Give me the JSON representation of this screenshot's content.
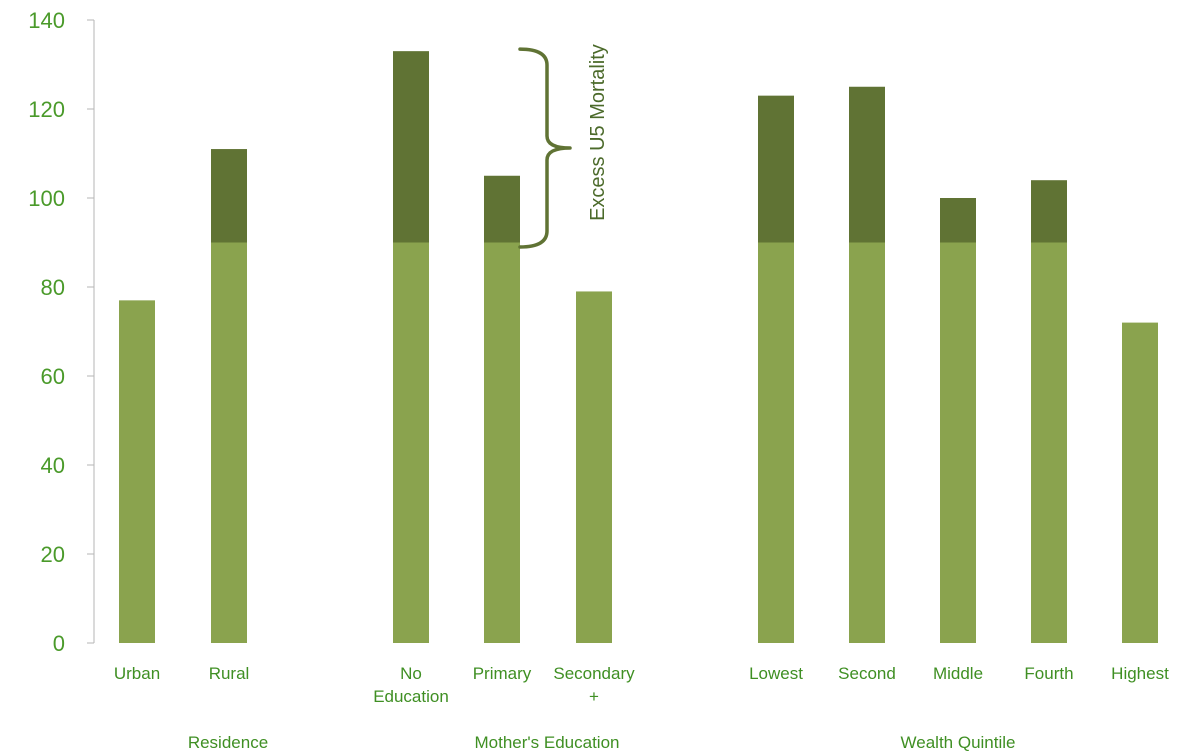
{
  "chart_data": {
    "type": "bar",
    "stacked": true,
    "categories": [
      "Urban",
      "Rural",
      "No Education",
      "Primary",
      "Secondary +",
      "Lowest",
      "Second",
      "Middle",
      "Fourth",
      "Highest"
    ],
    "category_lines": [
      [
        "Urban"
      ],
      [
        "Rural"
      ],
      [
        "No",
        "Education"
      ],
      [
        "Primary"
      ],
      [
        "Secondary",
        "+"
      ],
      [
        "Lowest"
      ],
      [
        "Second"
      ],
      [
        "Middle"
      ],
      [
        "Fourth"
      ],
      [
        "Highest"
      ]
    ],
    "groups": [
      {
        "label": "Residence",
        "categories": [
          "Urban",
          "Rural"
        ]
      },
      {
        "label": "Mother's Education",
        "categories": [
          "No Education",
          "Primary",
          "Secondary +"
        ]
      },
      {
        "label": "Wealth Quintile",
        "categories": [
          "Lowest",
          "Second",
          "Middle",
          "Fourth",
          "Highest"
        ]
      }
    ],
    "totals": [
      77,
      111,
      133,
      105,
      79,
      123,
      125,
      100,
      104,
      72
    ],
    "series": [
      {
        "values": [
          77,
          90,
          90,
          90,
          79,
          90,
          90,
          90,
          90,
          72
        ],
        "color": "#8aa34e"
      },
      {
        "values": [
          0,
          21,
          43,
          15,
          0,
          33,
          35,
          10,
          14,
          0
        ],
        "color": "#607334"
      }
    ],
    "ylim": [
      0,
      140
    ],
    "yticks": [
      0,
      20,
      40,
      60,
      80,
      100,
      120,
      140
    ],
    "grid": false,
    "annotation": {
      "text": "Excess U5 Mortality",
      "from": 89,
      "to": 133
    }
  }
}
